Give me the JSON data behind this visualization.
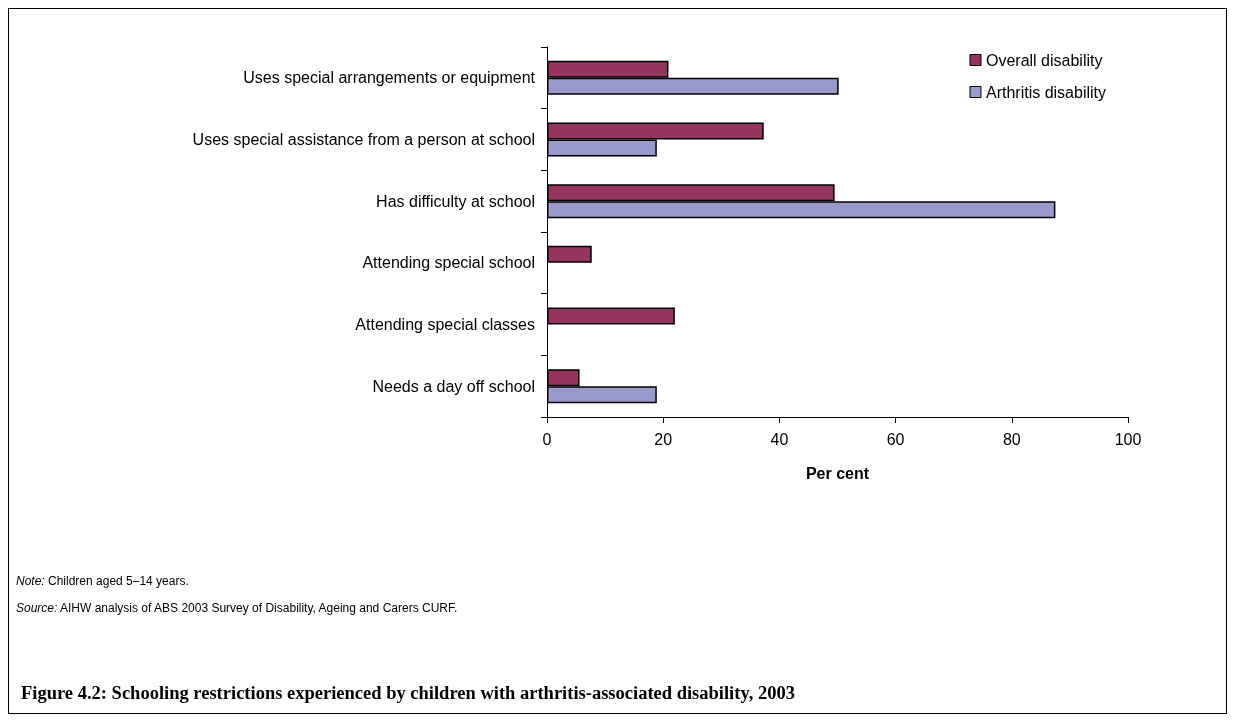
{
  "chart_data": {
    "type": "bar",
    "orientation": "horizontal",
    "title": "Figure 4.2: Schooling restrictions experienced by children with arthritis-associated disability, 2003",
    "xlabel": "Per cent",
    "categories": [
      "Uses special arrangements or equipment",
      "Uses special assistance from a person at school",
      "Has difficulty at school",
      "Attending special school",
      "Attending special classes",
      "Needs a day off school"
    ],
    "series": [
      {
        "name": "Overall disability",
        "color": "#943560",
        "values": [
          20.9,
          37.3,
          49.5,
          7.7,
          22.0,
          5.6
        ]
      },
      {
        "name": "Arthritis disability",
        "color": "#9999cc",
        "values": [
          50.2,
          18.9,
          87.5,
          null,
          null,
          18.9
        ]
      }
    ],
    "xlim": [
      0,
      100
    ],
    "xticks": [
      0,
      20,
      40,
      60,
      80,
      100
    ],
    "grid": false,
    "legend": "top right",
    "annotations": [
      "Note: Children aged 5–14 years.",
      "Source: AIHW analysis of ABS 2003 Survey of Disability, Ageing and Carers CURF."
    ]
  }
}
